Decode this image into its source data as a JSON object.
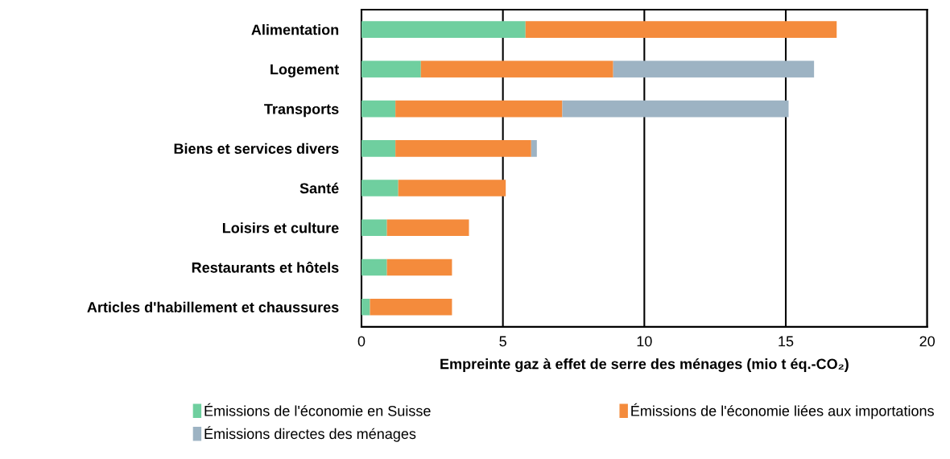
{
  "chart_data": {
    "type": "bar",
    "orientation": "horizontal",
    "stacked": true,
    "categories": [
      "Alimentation",
      "Logement",
      "Transports",
      "Biens et services divers",
      "Santé",
      "Loisirs et culture",
      "Restaurants et hôtels",
      "Articles d'habillement et chaussures"
    ],
    "series": [
      {
        "name": "Émissions de l'économie en Suisse",
        "color": "#6fcf9f",
        "values": [
          5.8,
          2.1,
          1.2,
          1.2,
          1.3,
          0.9,
          0.9,
          0.3
        ]
      },
      {
        "name": "Émissions de l'économie liées aux importations",
        "color": "#f48b3c",
        "values": [
          11.0,
          6.8,
          5.9,
          4.8,
          3.8,
          2.9,
          2.3,
          2.9
        ]
      },
      {
        "name": "Émissions directes des ménages",
        "color": "#9db3c3",
        "values": [
          null,
          7.1,
          8.0,
          0.2,
          null,
          null,
          null,
          null
        ]
      }
    ],
    "xlabel": "Empreinte gaz à effet de serre des ménages (mio t éq.-CO₂)",
    "xlim": [
      0,
      20
    ],
    "xticks": [
      0,
      5,
      10,
      15,
      20
    ],
    "grid": "x",
    "legend": "bottom"
  }
}
